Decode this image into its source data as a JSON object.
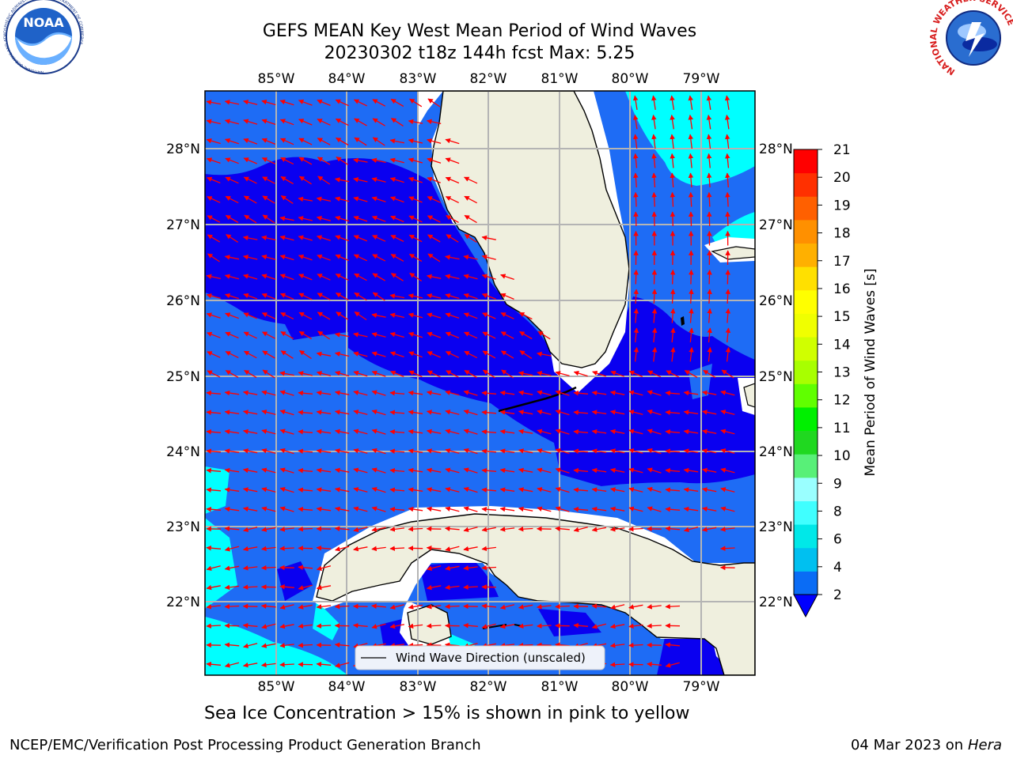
{
  "title_line1": "GEFS MEAN Key West Mean Period of Wind Waves",
  "title_line2": "20230302 t18z 144h fcst   Max: 5.25",
  "caption": "Sea Ice Concentration > 15% is shown in pink to yellow",
  "footer_left": "NCEP/EMC/Verification Post Processing Product Generation Branch",
  "footer_right_date": "04 Mar 2023 on",
  "footer_right_machine": "Hera",
  "legend_label": "Wind Wave Direction (unscaled)",
  "colorbar": {
    "label": "Mean Period of Wind Waves [s]",
    "ticks": [
      "2",
      "4",
      "6",
      "8",
      "9",
      "10",
      "11",
      "12",
      "13",
      "14",
      "15",
      "16",
      "17",
      "18",
      "19",
      "20",
      "21"
    ],
    "colors": [
      "#0a6cf5",
      "#00c0f0",
      "#00e8e8",
      "#40ffff",
      "#9affff",
      "#58f078",
      "#20d820",
      "#00f000",
      "#60ff00",
      "#a8ff00",
      "#d0ff00",
      "#f0ff00",
      "#ffff00",
      "#ffe000",
      "#ffb000",
      "#ff9000",
      "#ff6000",
      "#ff3000",
      "#ff0000"
    ],
    "extend_color": "#0000ff"
  },
  "map": {
    "lon_labels": [
      "85°W",
      "84°W",
      "83°W",
      "82°W",
      "81°W",
      "80°W",
      "79°W"
    ],
    "lat_labels": [
      "28°N",
      "27°N",
      "26°N",
      "25°N",
      "24°N",
      "23°N",
      "22°N"
    ],
    "land_color": "#efefde",
    "colors": {
      "dark": "#0a00f0",
      "mid": "#1e6cf5",
      "light": "#00ffff"
    }
  },
  "logos": {
    "noaa_text": "NOAA",
    "noaa_ring": "NATIONAL OCEANIC AND ATMOSPHERIC ADMINISTRATION · U.S. DEPARTMENT OF COMMERCE",
    "nws_ring": "NATIONAL WEATHER SERVICE"
  }
}
